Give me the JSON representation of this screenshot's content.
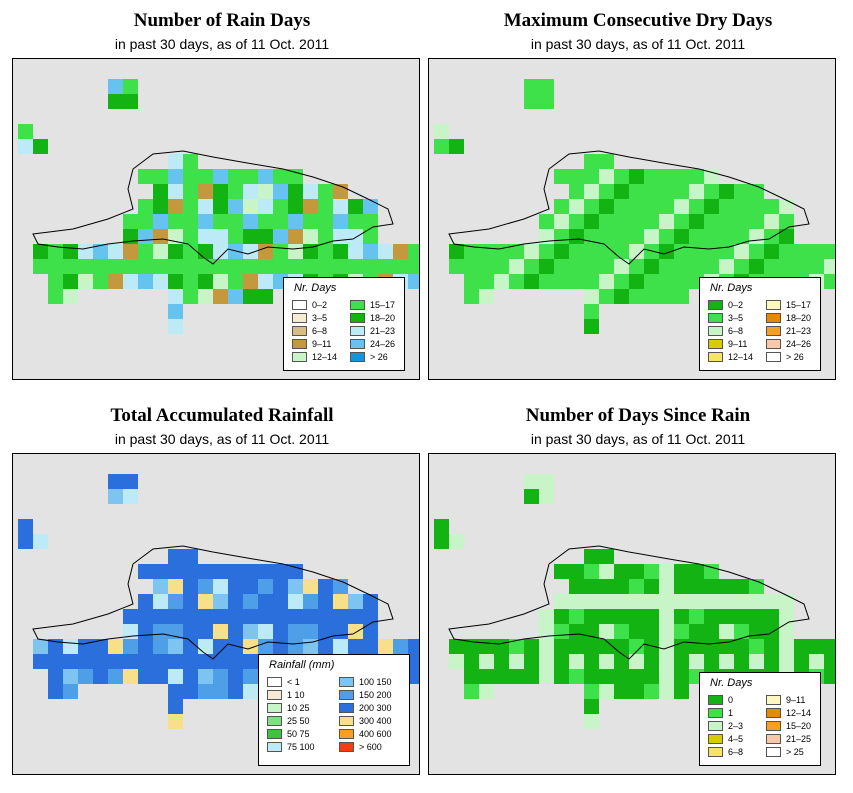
{
  "panels": [
    {
      "title": "Number of Rain Days",
      "subtitle": "in past 30 days, as of  11 Oct. 2011",
      "legend": {
        "title": "Nr. Days",
        "items": [
          {
            "label": "0–2",
            "color": "#ffffff"
          },
          {
            "label": "3–5",
            "color": "#f5ead2"
          },
          {
            "label": "6–8",
            "color": "#d9bd86"
          },
          {
            "label": "9–11",
            "color": "#c4983d"
          },
          {
            "label": "12–14",
            "color": "#c8f5c8"
          },
          {
            "label": "15–17",
            "color": "#3fe14a"
          },
          {
            "label": "18–20",
            "color": "#12b312"
          },
          {
            "label": "21–23",
            "color": "#bdeaf7"
          },
          {
            "label": "24–26",
            "color": "#66c3f0"
          },
          {
            "label": "> 26",
            "color": "#1a93d6"
          }
        ]
      }
    },
    {
      "title": "Maximum Consecutive Dry Days",
      "subtitle": "in past 30 days, as of  11 Oct. 2011",
      "legend": {
        "title": "Nr. Days",
        "items": [
          {
            "label": "0–2",
            "color": "#12b312"
          },
          {
            "label": "3–5",
            "color": "#3fe14a"
          },
          {
            "label": "6–8",
            "color": "#c8f5c8"
          },
          {
            "label": "9–11",
            "color": "#d8cc00"
          },
          {
            "label": "12–14",
            "color": "#f8e36a"
          },
          {
            "label": "15–17",
            "color": "#fff7c2"
          },
          {
            "label": "18–20",
            "color": "#e48a00"
          },
          {
            "label": "21–23",
            "color": "#f5a020"
          },
          {
            "label": "24–26",
            "color": "#f9c8a8"
          },
          {
            "label": "> 26",
            "color": "#ffffff"
          }
        ]
      }
    },
    {
      "title": "Total Accumulated Rainfall",
      "subtitle": "in past 30 days, as of  11 Oct. 2011",
      "legend": {
        "title": "Rainfall (mm)",
        "items": [
          {
            "label": "< 1",
            "color": "#ffffff"
          },
          {
            "label": "1    10",
            "color": "#f7ebd6"
          },
          {
            "label": "10    25",
            "color": "#c8f5c8"
          },
          {
            "label": "25    50",
            "color": "#7fe07f"
          },
          {
            "label": "50    75",
            "color": "#37c837"
          },
          {
            "label": "75  100",
            "color": "#bdeaf7"
          },
          {
            "label": "100  150",
            "color": "#7ec4f0"
          },
          {
            "label": "150  200",
            "color": "#4f9ee8"
          },
          {
            "label": "200  300",
            "color": "#2b6fdc"
          },
          {
            "label": "300  400",
            "color": "#f8e08a"
          },
          {
            "label": "400  600",
            "color": "#f5a020"
          },
          {
            "label": "> 600",
            "color": "#f04010"
          }
        ]
      }
    },
    {
      "title": "Number of Days Since Rain",
      "subtitle": "in past 30 days, as of  11 Oct. 2011",
      "legend": {
        "title": "Nr. Days",
        "items": [
          {
            "label": "0",
            "color": "#12b312"
          },
          {
            "label": "1",
            "color": "#3fe14a"
          },
          {
            "label": "2–3",
            "color": "#c8f5c8"
          },
          {
            "label": "4–5",
            "color": "#d8cc00"
          },
          {
            "label": "6–8",
            "color": "#f8e36a"
          },
          {
            "label": "9–11",
            "color": "#fff7c2"
          },
          {
            "label": "12–14",
            "color": "#e48a00"
          },
          {
            "label": "15–20",
            "color": "#f5a020"
          },
          {
            "label": "21–25",
            "color": "#f9c8a8"
          },
          {
            "label": "> 25",
            "color": "#ffffff"
          }
        ]
      }
    }
  ]
}
